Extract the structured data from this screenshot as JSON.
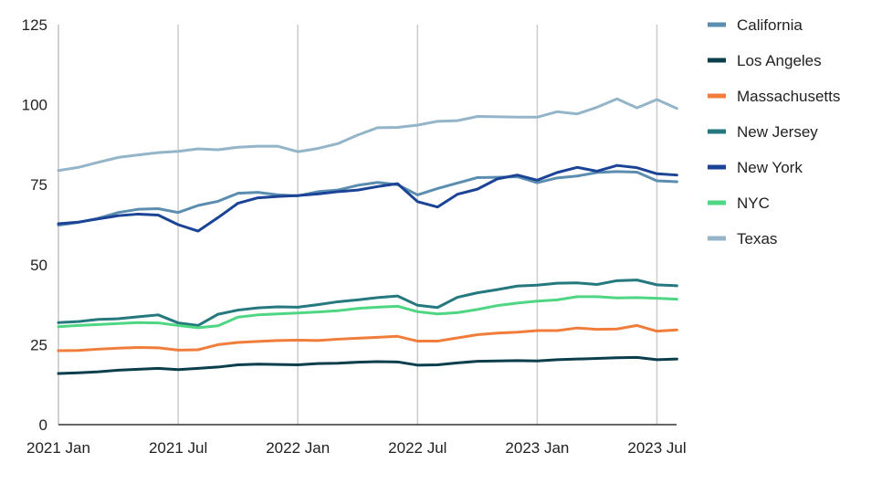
{
  "chart_data": {
    "type": "line",
    "title": "",
    "xlabel": "",
    "ylabel": "",
    "ylim": [
      0,
      125
    ],
    "yticks": [
      0,
      25,
      50,
      75,
      100,
      125
    ],
    "xticks": [
      {
        "index": 0,
        "label": "2021 Jan"
      },
      {
        "index": 6,
        "label": "2021 Jul"
      },
      {
        "index": 12,
        "label": "2022 Jan"
      },
      {
        "index": 18,
        "label": "2022 Jul"
      },
      {
        "index": 24,
        "label": "2023 Jan"
      },
      {
        "index": 30,
        "label": "2023 Jul"
      }
    ],
    "x": [
      "2021-01",
      "2021-02",
      "2021-03",
      "2021-04",
      "2021-05",
      "2021-06",
      "2021-07",
      "2021-08",
      "2021-09",
      "2021-10",
      "2021-11",
      "2021-12",
      "2022-01",
      "2022-02",
      "2022-03",
      "2022-04",
      "2022-05",
      "2022-06",
      "2022-07",
      "2022-08",
      "2022-09",
      "2022-10",
      "2022-11",
      "2022-12",
      "2023-01",
      "2023-02",
      "2023-03",
      "2023-04",
      "2023-05",
      "2023-06",
      "2023-07",
      "2023-08"
    ],
    "grid": {
      "vertical": true,
      "horizontal": false
    },
    "legend_position": "right",
    "series": [
      {
        "name": "California",
        "color": "#5b8db0",
        "values": [
          62.3,
          63.2,
          64.5,
          66.3,
          67.3,
          67.5,
          66.3,
          68.5,
          69.8,
          72.3,
          72.6,
          71.8,
          71.5,
          72.8,
          73.3,
          74.8,
          75.7,
          75.0,
          71.8,
          73.8,
          75.5,
          77.2,
          77.3,
          77.5,
          75.6,
          77.1,
          77.7,
          78.8,
          79.1,
          78.9,
          76.2,
          75.9
        ]
      },
      {
        "name": "Los Angeles",
        "color": "#0b3e4c",
        "values": [
          16.0,
          16.2,
          16.5,
          17.0,
          17.3,
          17.6,
          17.2,
          17.6,
          18.0,
          18.7,
          18.9,
          18.8,
          18.7,
          19.1,
          19.2,
          19.5,
          19.7,
          19.6,
          18.6,
          18.7,
          19.3,
          19.8,
          19.9,
          20.0,
          19.9,
          20.3,
          20.5,
          20.7,
          20.9,
          21.0,
          20.3,
          20.5
        ]
      },
      {
        "name": "Massachusetts",
        "color": "#f07d3c",
        "values": [
          23.1,
          23.2,
          23.6,
          23.9,
          24.1,
          24.0,
          23.3,
          23.4,
          25.0,
          25.7,
          26.0,
          26.3,
          26.4,
          26.3,
          26.7,
          27.0,
          27.3,
          27.6,
          26.1,
          26.1,
          27.1,
          28.1,
          28.6,
          28.9,
          29.4,
          29.4,
          30.2,
          29.8,
          29.9,
          31.0,
          29.2,
          29.6
        ]
      },
      {
        "name": "New Jersey",
        "color": "#24787e",
        "values": [
          31.9,
          32.2,
          32.9,
          33.1,
          33.7,
          34.3,
          31.8,
          31.0,
          34.5,
          35.8,
          36.5,
          36.8,
          36.7,
          37.5,
          38.4,
          39.0,
          39.7,
          40.2,
          37.3,
          36.6,
          39.8,
          41.2,
          42.2,
          43.3,
          43.6,
          44.2,
          44.3,
          43.8,
          45.0,
          45.2,
          43.7,
          43.4
        ]
      },
      {
        "name": "New York",
        "color": "#1b4396",
        "values": [
          62.8,
          63.3,
          64.3,
          65.3,
          65.8,
          65.5,
          62.5,
          60.5,
          64.7,
          69.2,
          70.9,
          71.3,
          71.6,
          72.1,
          72.8,
          73.3,
          74.4,
          75.3,
          69.7,
          68.0,
          72.0,
          73.6,
          76.8,
          78.0,
          76.4,
          78.8,
          80.4,
          79.2,
          81.0,
          80.3,
          78.4,
          78.0
        ]
      },
      {
        "name": "NYC",
        "color": "#4fd683",
        "values": [
          30.6,
          31.0,
          31.3,
          31.6,
          31.9,
          31.8,
          31.0,
          30.3,
          30.9,
          33.6,
          34.3,
          34.6,
          34.9,
          35.2,
          35.6,
          36.3,
          36.7,
          37.0,
          35.3,
          34.6,
          35.0,
          36.0,
          37.2,
          38.0,
          38.6,
          39.0,
          40.0,
          40.0,
          39.6,
          39.7,
          39.5,
          39.2
        ]
      },
      {
        "name": "Texas",
        "color": "#94b4c8",
        "values": [
          79.4,
          80.4,
          82.0,
          83.5,
          84.3,
          85.0,
          85.4,
          86.2,
          85.9,
          86.7,
          87.0,
          87.0,
          85.3,
          86.3,
          87.8,
          90.5,
          92.8,
          92.9,
          93.6,
          94.8,
          95.0,
          96.3,
          96.2,
          96.1,
          96.1,
          97.8,
          97.1,
          99.2,
          101.8,
          99.0,
          101.6,
          98.8
        ]
      }
    ]
  }
}
